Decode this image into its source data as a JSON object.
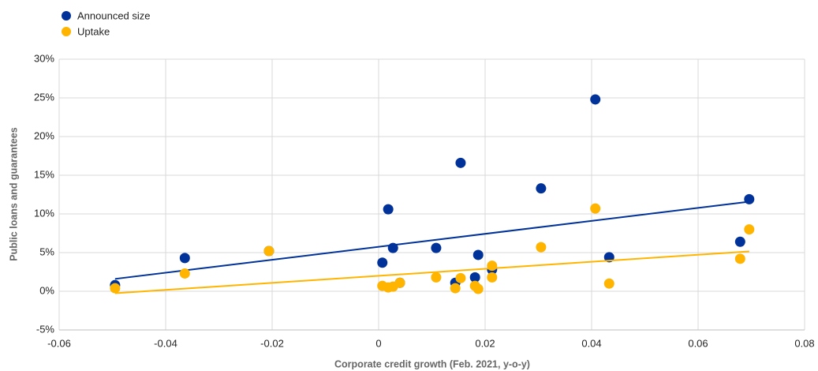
{
  "chart_data": {
    "type": "scatter",
    "x_label": "Corporate credit growth (Feb. 2021, y-o-y)",
    "y_label": "Public loans and guarantees",
    "xlim": [
      -0.06,
      0.08
    ],
    "xticks": [
      -0.06,
      -0.04,
      -0.02,
      0,
      0.02,
      0.04,
      0.06,
      0.08
    ],
    "ylim": [
      -5,
      30
    ],
    "yticks": [
      {
        "value": -5,
        "label": "-5%"
      },
      {
        "value": 0,
        "label": "0%"
      },
      {
        "value": 5,
        "label": "5%"
      },
      {
        "value": 10,
        "label": "10%"
      },
      {
        "value": 15,
        "label": "15%"
      },
      {
        "value": 20,
        "label": "20%"
      },
      {
        "value": 25,
        "label": "25%"
      },
      {
        "value": 30,
        "label": "30%"
      }
    ],
    "grid": true,
    "trendline": true,
    "legend": "top-left",
    "series": [
      {
        "name": "Announced size",
        "color": "#003299",
        "x": [
          -0.0495,
          -0.0364,
          -0.0206,
          0.0007,
          0.0018,
          0.0027,
          0.004,
          0.0108,
          0.0144,
          0.0154,
          0.0181,
          0.0187,
          0.0213,
          0.0305,
          0.0407,
          0.0433,
          0.0679,
          0.0696
        ],
        "values": [
          0.8,
          4.3,
          5.2,
          3.7,
          10.6,
          5.6,
          1.1,
          5.6,
          1.1,
          16.6,
          1.8,
          4.7,
          2.8,
          13.3,
          24.8,
          4.4,
          6.4,
          11.9
        ]
      },
      {
        "name": "Uptake",
        "color": "#ffb400",
        "x": [
          -0.0495,
          -0.0364,
          -0.0206,
          0.0007,
          0.0018,
          0.0027,
          0.004,
          0.0108,
          0.0144,
          0.0154,
          0.0181,
          0.0187,
          0.0213,
          0.0213,
          0.0305,
          0.0407,
          0.0433,
          0.0679,
          0.0696
        ],
        "values": [
          0.4,
          2.3,
          5.2,
          0.7,
          0.5,
          0.6,
          1.1,
          1.8,
          0.4,
          1.7,
          0.7,
          0.3,
          3.3,
          1.8,
          5.7,
          10.7,
          1.0,
          4.2,
          8.0
        ]
      }
    ]
  }
}
